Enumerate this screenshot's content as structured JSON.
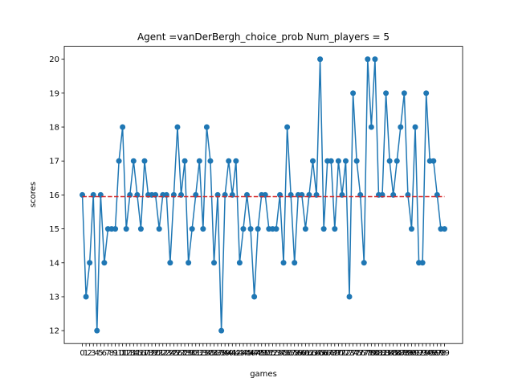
{
  "chart_data": {
    "type": "line",
    "title": "Agent =vanDerBergh_choice_prob Num_players = 5",
    "xlabel": "games",
    "ylabel": "scores",
    "x": [
      0,
      1,
      2,
      3,
      4,
      5,
      6,
      7,
      8,
      9,
      10,
      11,
      12,
      13,
      14,
      15,
      16,
      17,
      18,
      19,
      20,
      21,
      22,
      23,
      24,
      25,
      26,
      27,
      28,
      29,
      30,
      31,
      32,
      33,
      34,
      35,
      36,
      37,
      38,
      39,
      40,
      41,
      42,
      43,
      44,
      45,
      46,
      47,
      48,
      49,
      50,
      51,
      52,
      53,
      54,
      55,
      56,
      57,
      58,
      59,
      60,
      61,
      62,
      63,
      64,
      65,
      66,
      67,
      68,
      69,
      70,
      71,
      72,
      73,
      74,
      75,
      76,
      77,
      78,
      79,
      80,
      81,
      82,
      83,
      84,
      85,
      86,
      87,
      88,
      89,
      90,
      91,
      92,
      93,
      94,
      95,
      96,
      97,
      98,
      99
    ],
    "series": [
      {
        "color": "#1f77b4",
        "markers": true,
        "values": [
          16,
          13,
          14,
          16,
          12,
          16,
          14,
          15,
          15,
          15,
          17,
          18,
          15,
          16,
          17,
          16,
          15,
          17,
          16,
          16,
          16,
          15,
          16,
          16,
          14,
          16,
          18,
          16,
          17,
          14,
          15,
          16,
          17,
          15,
          18,
          17,
          14,
          16,
          12,
          16,
          17,
          16,
          17,
          14,
          15,
          16,
          15,
          13,
          15,
          16,
          16,
          15,
          15,
          15,
          16,
          14,
          18,
          16,
          14,
          16,
          16,
          15,
          16,
          17,
          16,
          20,
          15,
          17,
          17,
          15,
          17,
          16,
          17,
          13,
          19,
          17,
          16,
          14,
          20,
          18,
          20,
          16,
          16,
          19,
          17,
          16,
          17,
          18,
          19,
          16,
          15,
          18,
          14,
          14,
          19,
          17,
          17,
          16,
          15,
          15
        ]
      }
    ],
    "mean_line": {
      "value": 15.95,
      "color": "#d62728",
      "dashed": true
    },
    "xlim": [
      -4.95,
      103.95
    ],
    "xticks": [
      0,
      1,
      2,
      3,
      4,
      5,
      6,
      7,
      8,
      9,
      10,
      11,
      12,
      13,
      14,
      15,
      16,
      17,
      18,
      19,
      20,
      21,
      22,
      23,
      24,
      25,
      26,
      27,
      28,
      29,
      30,
      31,
      32,
      33,
      34,
      35,
      36,
      37,
      38,
      39,
      40,
      41,
      42,
      43,
      44,
      45,
      46,
      47,
      48,
      49,
      50,
      51,
      52,
      53,
      54,
      55,
      56,
      57,
      58,
      59,
      60,
      61,
      62,
      63,
      64,
      65,
      66,
      67,
      68,
      69,
      70,
      71,
      72,
      73,
      74,
      75,
      76,
      77,
      78,
      79,
      80,
      81,
      82,
      83,
      84,
      85,
      86,
      87,
      88,
      89,
      90,
      91,
      92,
      93,
      94,
      95,
      96,
      97,
      98,
      99
    ],
    "ylim": [
      11.62,
      20.38
    ],
    "yticks": [
      12,
      13,
      14,
      15,
      16,
      17,
      18,
      19,
      20
    ]
  }
}
